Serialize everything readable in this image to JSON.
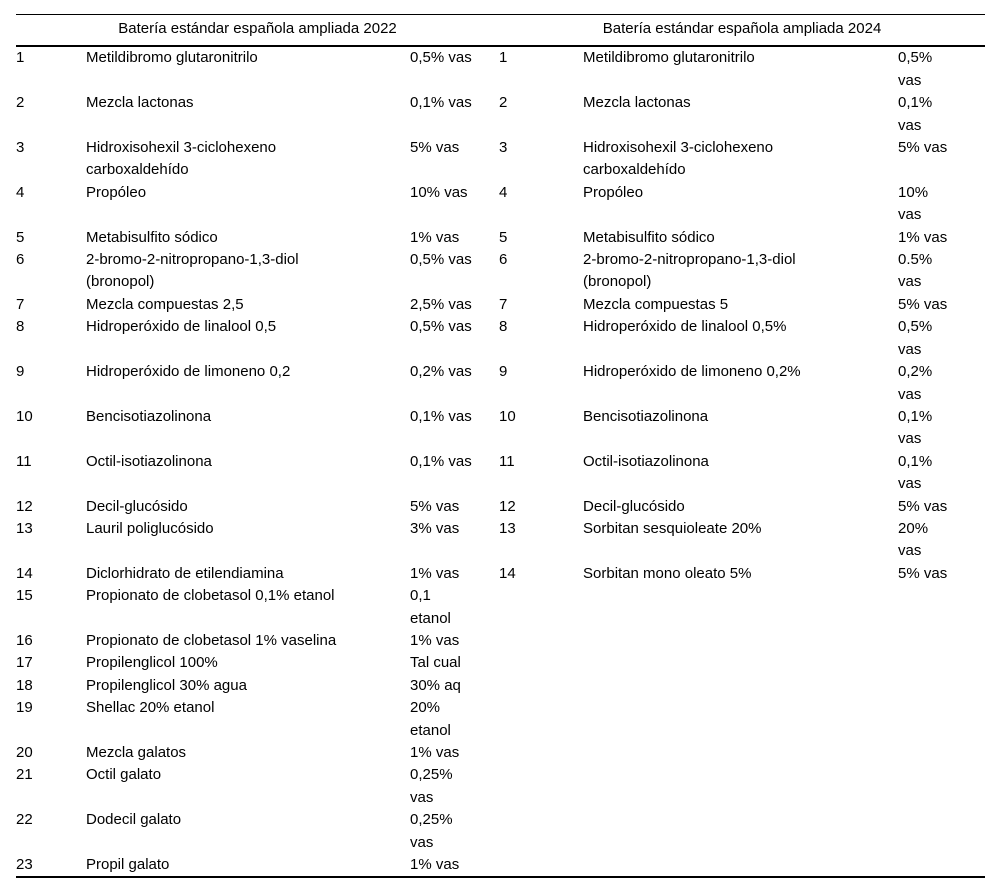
{
  "page": {
    "background_color": "#ffffff",
    "text_color": "#000000",
    "rule_color": "#000000"
  },
  "tables": [
    {
      "title": "Batería estándar española ampliada 2022",
      "rows": [
        {
          "num": "1",
          "name": "Metildibromo glutaronitrilo",
          "value": "0,5% vas"
        },
        {
          "num": "2",
          "name": "Mezcla lactonas",
          "value": "0,1% vas"
        },
        {
          "num": "3",
          "name": "Hidroxisohexil 3-ciclohexeno\ncarboxaldehído",
          "value": "5% vas"
        },
        {
          "num": "4",
          "name": "Propóleo",
          "value": "10% vas"
        },
        {
          "num": "5",
          "name": "Metabisulfito sódico",
          "value": "1% vas"
        },
        {
          "num": "6",
          "name": "2-bromo-2-nitropropano-1,3-diol\n(bronopol)",
          "value": "0,5% vas"
        },
        {
          "num": "7",
          "name": "Mezcla compuestas 2,5",
          "value": "2,5% vas"
        },
        {
          "num": "8",
          "name": "Hidroperóxido de linalool 0,5",
          "value": "0,5% vas"
        },
        {
          "num": "9",
          "name": "Hidroperóxido de limoneno 0,2",
          "value": "0,2% vas"
        },
        {
          "num": "10",
          "name": "Bencisotiazolinona",
          "value": "0,1% vas"
        },
        {
          "num": "11",
          "name": "Octil-isotiazolinona",
          "value": "0,1% vas"
        },
        {
          "num": "12",
          "name": "Decil-glucósido",
          "value": "5% vas"
        },
        {
          "num": "13",
          "name": "Lauril poliglucósido",
          "value": "3% vas"
        },
        {
          "num": "14",
          "name": "Diclorhidrato de etilendiamina",
          "value": "1% vas"
        },
        {
          "num": "15",
          "name": "Propionato de clobetasol 0,1% etanol",
          "value": "0,1\netanol"
        },
        {
          "num": "16",
          "name": "Propionato de clobetasol 1% vaselina",
          "value": "1% vas"
        },
        {
          "num": "17",
          "name": "Propilenglicol 100%",
          "value": "Tal cual"
        },
        {
          "num": "18",
          "name": "Propilenglicol 30% agua",
          "value": "30% aq"
        },
        {
          "num": "19",
          "name": "Shellac 20% etanol",
          "value": "20%\netanol"
        },
        {
          "num": "20",
          "name": "Mezcla galatos",
          "value": "1% vas"
        },
        {
          "num": "21",
          "name": "Octil galato",
          "value": "0,25%\nvas"
        },
        {
          "num": "22",
          "name": "Dodecil galato",
          "value": "0,25%\nvas"
        },
        {
          "num": "23",
          "name": "Propil galato",
          "value": "1% vas"
        }
      ]
    },
    {
      "title": "Batería estándar española ampliada 2024",
      "rows": [
        {
          "num": "1",
          "name": "Metildibromo glutaronitrilo",
          "value": "0,5%\nvas"
        },
        {
          "num": "2",
          "name": "Mezcla lactonas",
          "value": "0,1%\nvas"
        },
        {
          "num": "3",
          "name": "Hidroxisohexil 3-ciclohexeno\ncarboxaldehído",
          "value": "5% vas"
        },
        {
          "num": "4",
          "name": "Propóleo",
          "value": "10%\nvas"
        },
        {
          "num": "5",
          "name": "Metabisulfito sódico",
          "value": "1% vas"
        },
        {
          "num": "6",
          "name": "2-bromo-2-nitropropano-1,3-diol\n(bronopol)",
          "value": "0.5%\nvas"
        },
        {
          "num": "7",
          "name": "Mezcla compuestas 5",
          "value": "5% vas"
        },
        {
          "num": "8",
          "name": "Hidroperóxido de linalool 0,5%",
          "value": "0,5%\nvas"
        },
        {
          "num": "9",
          "name": "Hidroperóxido de limoneno 0,2%",
          "value": "0,2%\nvas"
        },
        {
          "num": "10",
          "name": "Bencisotiazolinona",
          "value": "0,1%\nvas"
        },
        {
          "num": "11",
          "name": "Octil-isotiazolinona",
          "value": "0,1%\nvas"
        },
        {
          "num": "12",
          "name": "Decil-glucósido",
          "value": "5% vas"
        },
        {
          "num": "13",
          "name": "Sorbitan sesquioleate 20%",
          "value": "20%\nvas"
        },
        {
          "num": "14",
          "name": "Sorbitan mono oleato 5%",
          "value": "5% vas"
        }
      ]
    }
  ]
}
